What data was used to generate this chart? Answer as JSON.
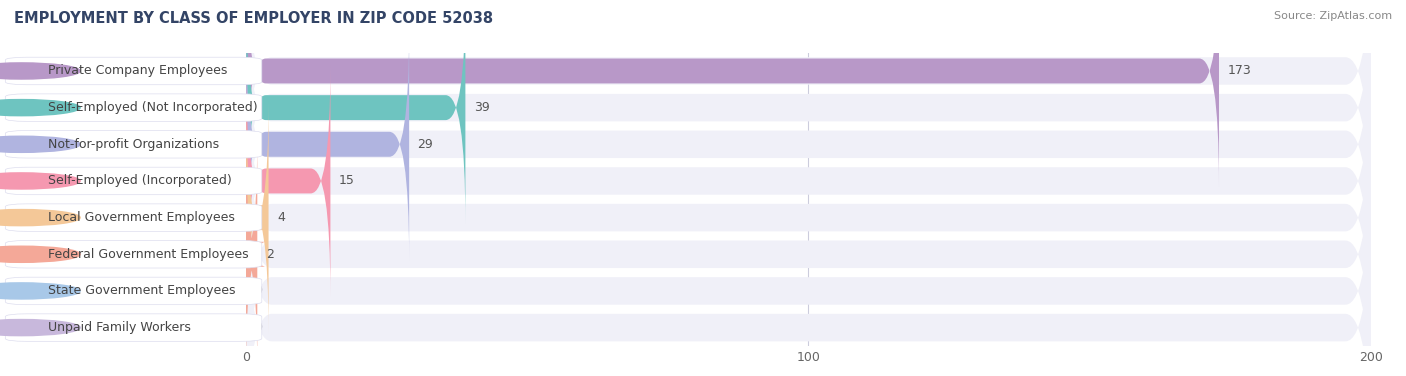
{
  "title": "EMPLOYMENT BY CLASS OF EMPLOYER IN ZIP CODE 52038",
  "source": "Source: ZipAtlas.com",
  "categories": [
    "Private Company Employees",
    "Self-Employed (Not Incorporated)",
    "Not-for-profit Organizations",
    "Self-Employed (Incorporated)",
    "Local Government Employees",
    "Federal Government Employees",
    "State Government Employees",
    "Unpaid Family Workers"
  ],
  "values": [
    173,
    39,
    29,
    15,
    4,
    2,
    0,
    0
  ],
  "bar_colors": [
    "#b898c8",
    "#6ec4c0",
    "#b0b4e0",
    "#f598b0",
    "#f4c898",
    "#f4a898",
    "#a8c8e8",
    "#c8b8dc"
  ],
  "bar_row_bg_light": "#f0f0f8",
  "bar_row_bg_white": "#ffffff",
  "xlim": [
    0,
    200
  ],
  "xticks": [
    0,
    100,
    200
  ],
  "title_fontsize": 10.5,
  "source_fontsize": 8,
  "label_fontsize": 9,
  "value_fontsize": 9,
  "background_color": "#ffffff",
  "grid_color": "#ccccdd",
  "label_box_color": "#ffffff",
  "label_text_color": "#444444",
  "value_text_color": "#555555"
}
